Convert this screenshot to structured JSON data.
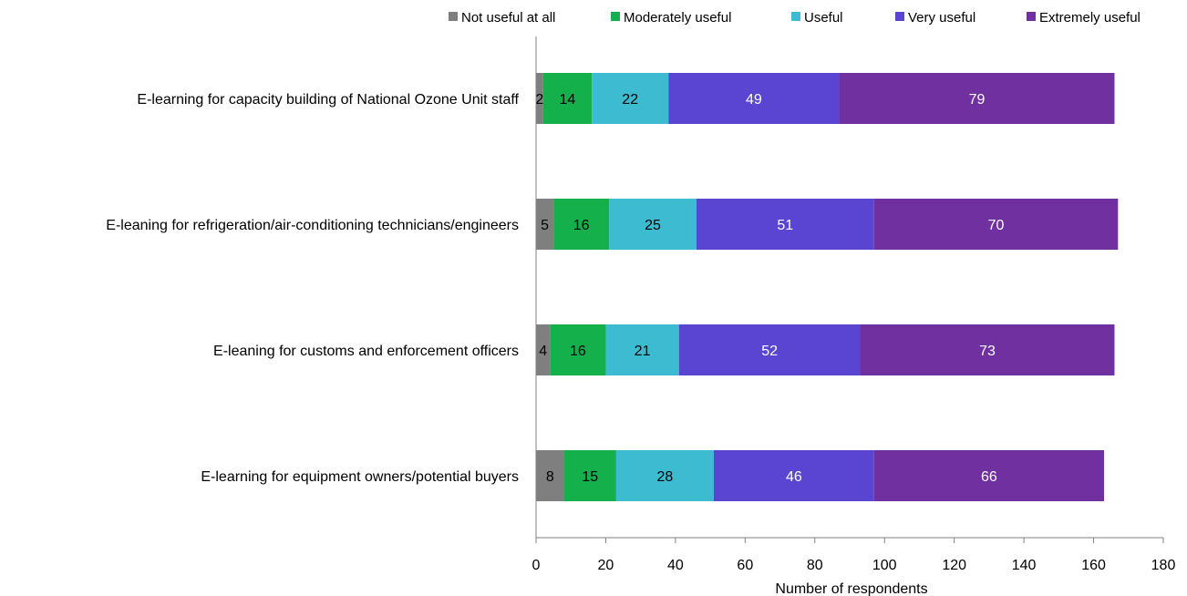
{
  "chart_data": {
    "type": "bar",
    "orientation": "horizontal",
    "stacked": true,
    "title": "",
    "xlabel": "Number of respondents",
    "ylabel": "",
    "xlim": [
      0,
      180
    ],
    "xticks": [
      "0",
      "20",
      "40",
      "60",
      "80",
      "100",
      "120",
      "140",
      "160",
      "180"
    ],
    "grid": false,
    "legend_position": "top",
    "categories": [
      "E-learning for capacity building of National Ozone Unit staff",
      "E-leaning for refrigeration/air-conditioning technicians/engineers",
      "E-leaning for customs and enforcement officers",
      "E-learning for equipment owners/potential buyers"
    ],
    "series": [
      {
        "name": "Not useful at all",
        "color": "#7f7f7f",
        "label_color": "#000000",
        "values": [
          2,
          5,
          4,
          8
        ]
      },
      {
        "name": "Moderately useful",
        "color": "#14b04c",
        "label_color": "#000000",
        "values": [
          14,
          16,
          16,
          15
        ]
      },
      {
        "name": "Useful",
        "color": "#3dbbd1",
        "label_color": "#000000",
        "values": [
          22,
          25,
          21,
          28
        ]
      },
      {
        "name": "Very useful",
        "color": "#5a45d2",
        "label_color": "#ffffff",
        "values": [
          49,
          51,
          52,
          46
        ]
      },
      {
        "name": "Extremely useful",
        "color": "#7030a0",
        "label_color": "#ffffff",
        "values": [
          79,
          70,
          73,
          66
        ]
      }
    ]
  }
}
